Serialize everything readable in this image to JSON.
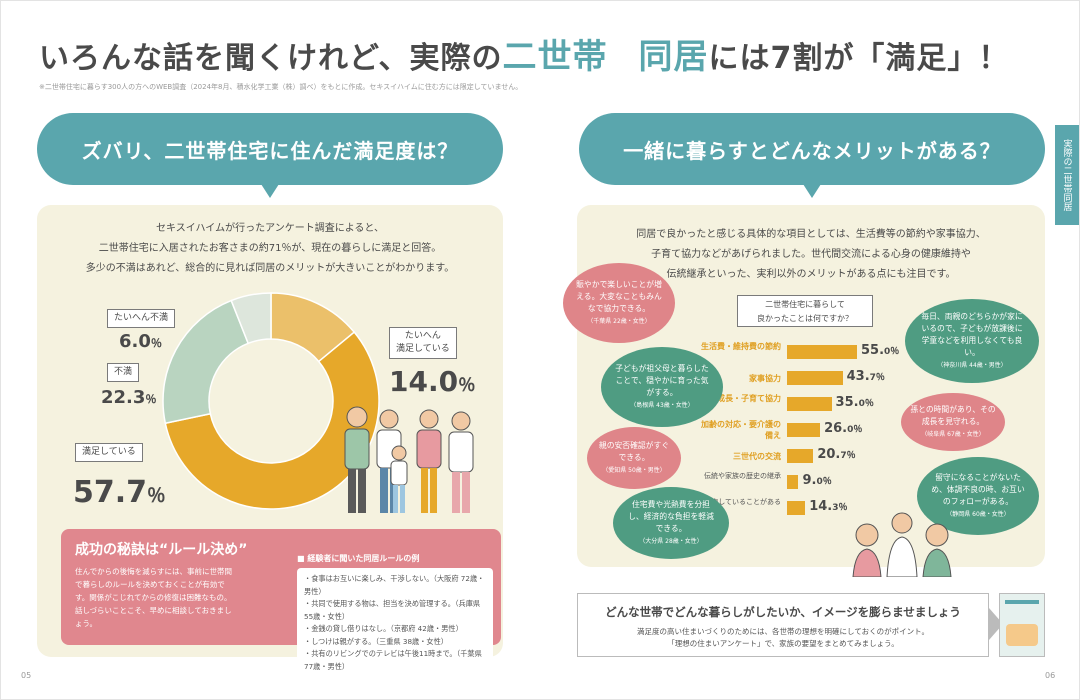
{
  "header": {
    "title_pre": "いろんな話を聞くけれど、実際の",
    "title_hl1": "二世帯",
    "title_hl2": "同居",
    "title_post": "には7割が「満足」！",
    "note": "※二世帯住宅に暮らす300人の方へのWEB調査（2024年8月、積水化学工業（株）調べ）をもとに作成。セキスイハイムに住む方には限定していません。"
  },
  "left": {
    "bubble": "ズバリ、二世帯住宅に住んだ満足度は？",
    "lead": [
      "セキスイハイムが行ったアンケート調査によると、",
      "二世帯住宅に入居されたお客さまの約71％が、現在の暮らしに満足と回答。",
      "多少の不満はあれど、総合的に見れば同居のメリットが大きいことがわかります。"
    ],
    "segments": [
      {
        "label": "たいへん満足している",
        "value": "14.0",
        "unit": "％",
        "color": "#ebc06a"
      },
      {
        "label": "満足している",
        "value": "57.7",
        "unit": "％",
        "color": "#e6a82a"
      },
      {
        "label": "不満",
        "value": "22.3",
        "unit": "％",
        "color": "#b9d4c0"
      },
      {
        "label": "たいへん不満",
        "value": "6.0",
        "unit": "％",
        "color": "#dde6dc"
      }
    ],
    "label_very_satisfied_1": "たいへん",
    "label_very_satisfied_2": "満足している",
    "secret_title": "成功の秘訣は“ルール決め”",
    "secret_body": "住んでからの後悔を減らすには、事前に世帯間で暮らしのルールを決めておくことが有効です。関係がこじれてからの修復は困難なもの。話しづらいことこそ、早めに相談しておきましょう。",
    "rules_heading": "■ 経験者に聞いた同居ルールの例",
    "rules": [
      "・食事はお互いに楽しみ、干渉しない。（大阪府 72歳・男性）",
      "・共同で使用する物は、担当を決め管理する。（兵庫県 55歳・女性）",
      "・金銭の貸し借りはなし。（京都府 42歳・男性）",
      "・しつけは親がする。（三重県 38歳・女性）",
      "・共有のリビングでのテレビは午後11時まで。（千葉県 77歳・男性）"
    ],
    "page_number": "05"
  },
  "right": {
    "side_tab": "実際の二世帯同居",
    "bubble": "一緒に暮らすとどんなメリットがある？",
    "lead": [
      "同居で良かったと感じる具体的な項目としては、生活費等の節約や家事協力、",
      "子育て協力などがあげられました。世代間交流による心身の健康維持や",
      "伝統継承といった、実利以外のメリットがある点にも注目です。"
    ],
    "question_1": "二世帯住宅に暮らして",
    "question_2": "良かったことは何ですか？",
    "bars": [
      {
        "label": "生活費・維持費の節約",
        "value": 55.0,
        "int": "55.",
        "dec": "0",
        "unit": "％",
        "highlight": true
      },
      {
        "label": "家事協力",
        "value": 43.7,
        "int": "43.",
        "dec": "7",
        "unit": "％",
        "highlight": true
      },
      {
        "label": "孫の成長・子育て協力",
        "value": 35.0,
        "int": "35.",
        "dec": "0",
        "unit": "％",
        "highlight": true
      },
      {
        "label": "加齢の対応・要介護の備え",
        "value": 26.0,
        "int": "26.",
        "dec": "0",
        "unit": "％",
        "highlight": true
      },
      {
        "label": "三世代の交流",
        "value": 20.7,
        "int": "20.",
        "dec": "7",
        "unit": "％",
        "highlight": true
      },
      {
        "label": "伝統や家族の歴史の継承",
        "value": 9.0,
        "int": "9.",
        "dec": "0",
        "unit": "％",
        "highlight": false
      },
      {
        "label": "後悔していることがある",
        "value": 14.3,
        "int": "14.",
        "dec": "3",
        "unit": "％",
        "highlight": false
      }
    ],
    "comments": [
      {
        "text": "賑やかで楽しいことが増える。大変なこともみんなで協力できる。",
        "who": "（千葉県 22歳・女性）"
      },
      {
        "text": "子どもが祖父母と暮らしたことで、穏やかに育った気がする。",
        "who": "（島根県 43歳・女性）"
      },
      {
        "text": "親の安否確認がすぐできる。",
        "who": "（愛知県 50歳・男性）"
      },
      {
        "text": "住宅費や光熱費を分担し、経済的な負担を軽減できる。",
        "who": "（大分県 28歳・女性）"
      },
      {
        "text": "毎日、両親のどちらかが家にいるので、子どもが放課後に学童などを利用しなくても良い。",
        "who": "（神奈川県 44歳・男性）"
      },
      {
        "text": "孫との時間があり、その成長を見守れる。",
        "who": "（岐阜県 67歳・女性）"
      },
      {
        "text": "留守になることがないため、体調不良の時、お互いのフォローがある。",
        "who": "（静岡県 60歳・女性）"
      }
    ],
    "imagine_title": "どんな世帯でどんな暮らしがしたいか、イメージを膨らませましょう",
    "imagine_body_1": "満足度の高い住まいづくりのためには、各世帯の理想を明確にしておくのがポイント。",
    "imagine_body_2": "「理想の住まいアンケート」で、家族の要望をまとめてみましょう。",
    "page_number": "06"
  }
}
